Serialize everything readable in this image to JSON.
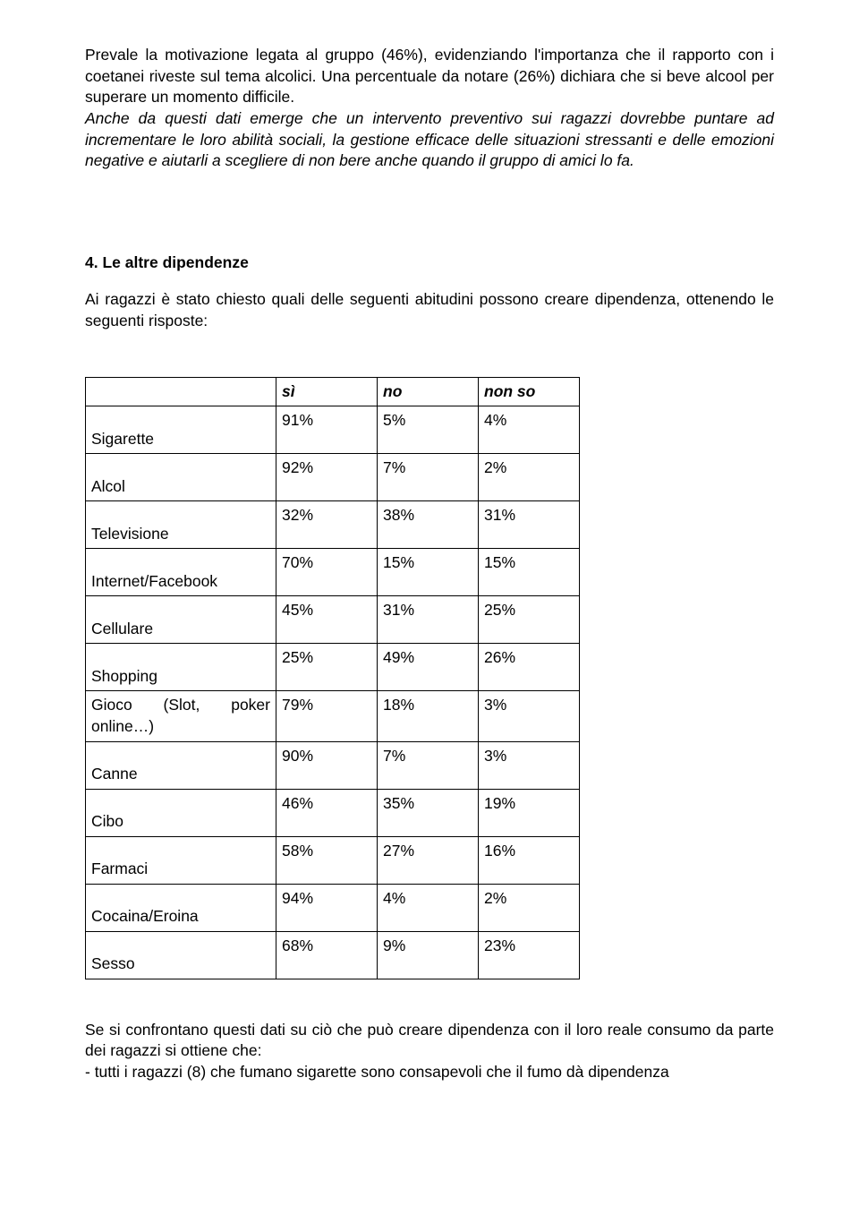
{
  "paragraphs": {
    "p1": "Prevale la motivazione legata al gruppo (46%), evidenziando l'importanza che il rapporto con i coetanei riveste sul tema alcolici. Una percentuale da notare (26%) dichiara che si beve alcool per superare un momento difficile.",
    "p2_italic": "Anche da questi dati emerge che un intervento preventivo sui ragazzi dovrebbe puntare ad incrementare le loro abilità sociali, la gestione efficace delle situazioni stressanti e delle emozioni negative e aiutarli a scegliere di non bere anche quando il gruppo di amici lo fa."
  },
  "section": {
    "title": "4. Le altre dipendenze",
    "intro": "Ai ragazzi è stato chiesto quali delle seguenti abitudini possono creare dipendenza, ottenendo le seguenti risposte:"
  },
  "table": {
    "columns": [
      "sì",
      "no",
      "non so"
    ],
    "rows": [
      {
        "label": "Sigarette",
        "si": "91%",
        "no": "5%",
        "nonso": "4%"
      },
      {
        "label": "Alcol",
        "si": "92%",
        "no": "7%",
        "nonso": "2%"
      },
      {
        "label": "Televisione",
        "si": "32%",
        "no": "38%",
        "nonso": "31%"
      },
      {
        "label": "Internet/Facebook",
        "si": "70%",
        "no": "15%",
        "nonso": "15%"
      },
      {
        "label": "Cellulare",
        "si": "45%",
        "no": "31%",
        "nonso": "25%"
      },
      {
        "label": "Shopping",
        "si": "25%",
        "no": "49%",
        "nonso": "26%"
      },
      {
        "label": "Gioco (Slot, poker online…)",
        "si": "79%",
        "no": "18%",
        "nonso": "3%"
      },
      {
        "label": "Canne",
        "si": "90%",
        "no": "7%",
        "nonso": "3%"
      },
      {
        "label": "Cibo",
        "si": "46%",
        "no": "35%",
        "nonso": "19%"
      },
      {
        "label": "Farmaci",
        "si": "58%",
        "no": "27%",
        "nonso": "16%"
      },
      {
        "label": "Cocaina/Eroina",
        "si": "94%",
        "no": "4%",
        "nonso": "2%"
      },
      {
        "label": "Sesso",
        "si": "68%",
        "no": "9%",
        "nonso": "23%"
      }
    ]
  },
  "closing": {
    "c1": "Se si confrontano questi dati su ciò che può creare dipendenza con il loro reale consumo da parte dei ragazzi si ottiene che:",
    "c2": "- tutti i ragazzi (8) che fumano sigarette sono consapevoli che il fumo dà dipendenza"
  }
}
